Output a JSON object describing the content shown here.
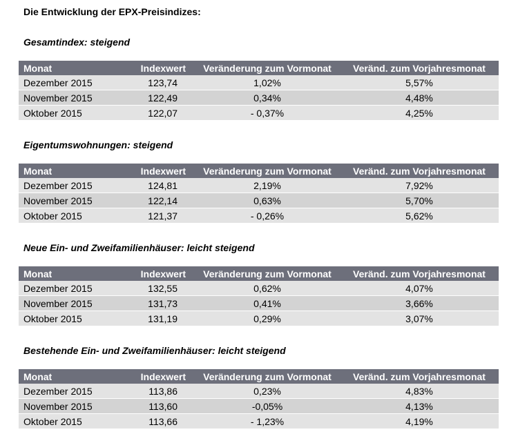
{
  "title": "Die Entwicklung der EPX-Preisindizes:",
  "columns": [
    "Monat",
    "Indexwert",
    "Veränderung zum Vormonat",
    "Veränd. zum Vorjahresmonat"
  ],
  "sections": [
    {
      "heading": "Gesamtindex: steigend",
      "rows": [
        [
          "Dezember 2015",
          "123,74",
          "1,02%",
          "5,57%"
        ],
        [
          "November 2015",
          "122,49",
          "0,34%",
          "4,48%"
        ],
        [
          "Oktober 2015",
          "122,07",
          "- 0,37%",
          "4,25%"
        ]
      ]
    },
    {
      "heading": "Eigentumswohnungen: steigend",
      "rows": [
        [
          "Dezember 2015",
          "124,81",
          "2,19%",
          "7,92%"
        ],
        [
          "November 2015",
          "122,14",
          "0,63%",
          "5,70%"
        ],
        [
          "Oktober 2015",
          "121,37",
          "- 0,26%",
          "5,62%"
        ]
      ]
    },
    {
      "heading": "Neue Ein- und Zweifamilienhäuser: leicht steigend",
      "rows": [
        [
          "Dezember 2015",
          "132,55",
          "0,62%",
          "4,07%"
        ],
        [
          "November 2015",
          "131,73",
          "0,41%",
          "3,66%"
        ],
        [
          "Oktober 2015",
          "131,19",
          "0,29%",
          "3,07%"
        ]
      ]
    },
    {
      "heading": "Bestehende Ein- und Zweifamilienhäuser: leicht steigend",
      "rows": [
        [
          "Dezember 2015",
          "113,86",
          "0,23%",
          "4,83%"
        ],
        [
          "November 2015",
          "113,60",
          "-0,05%",
          "4,13%"
        ],
        [
          "Oktober 2015",
          "113,66",
          "- 1,23%",
          "4,19%"
        ]
      ]
    }
  ]
}
